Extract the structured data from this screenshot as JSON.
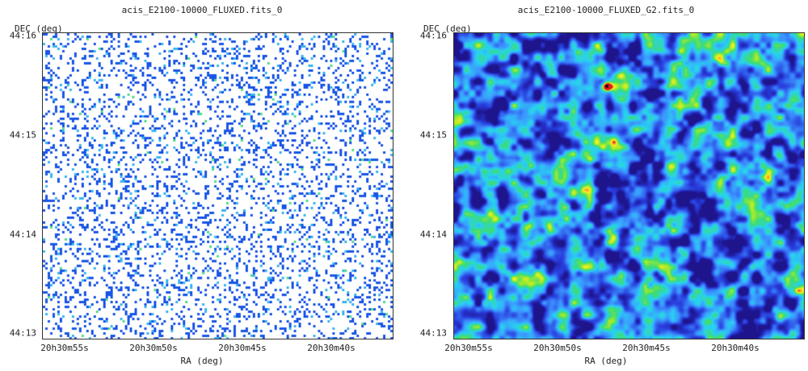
{
  "panels": [
    {
      "title": "acis_E2100-10000_FLUXED.fits_0",
      "ylabel": "DEC (deg)",
      "xlabel": "RA (deg)",
      "yticks": [
        "44:16",
        "44:15",
        "44:14",
        "44:13"
      ],
      "xticks": [
        "20h30m55s",
        "20h30m50s",
        "20h30m45s",
        "20h30m40s"
      ],
      "colormap": "sparse blue pixel map on white"
    },
    {
      "title": "acis_E2100-10000_FLUXED_G2.fits_0",
      "ylabel": "DEC (deg)",
      "xlabel": "RA (deg)",
      "yticks": [
        "44:16",
        "44:15",
        "44:14",
        "44:13"
      ],
      "xticks": [
        "20h30m55s",
        "20h30m50s",
        "20h30m45s",
        "20h30m40s"
      ],
      "colormap": "rainbow smoothed image"
    }
  ],
  "colors": {
    "sparse_pixel": "#1a56e6",
    "sparse_pixel_light": "#3ab6f0",
    "frame": "#333333"
  }
}
